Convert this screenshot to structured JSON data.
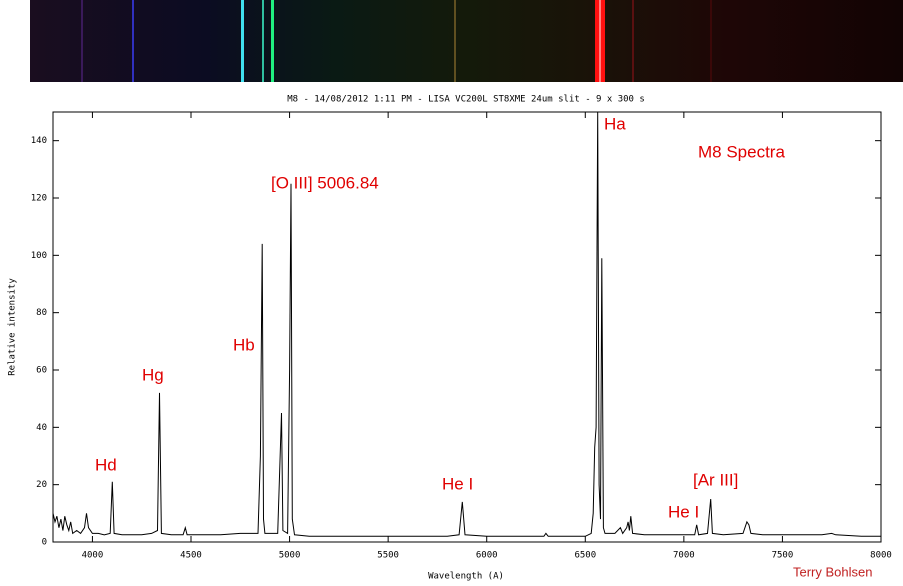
{
  "chart_data": {
    "type": "line",
    "title": "M8 - 14/08/2012 1:11 PM - LISA VC200L ST8XME 24um slit - 9 x 300 s",
    "x_label": "Wavelength (A)",
    "y_label": "Relative intensity",
    "annotations": [
      "Hd",
      "Hg",
      "Hb",
      "[O III] 5006.84",
      "Ha",
      "M8 Spectra",
      "He I",
      "He I",
      "[Ar III]",
      "Terry Bohlsen"
    ],
    "color": "#000000",
    "x": [
      3800,
      3810,
      3820,
      3830,
      3840,
      3850,
      3860,
      3870,
      3880,
      3890,
      3900,
      3920,
      3940,
      3960,
      3970,
      3980,
      4000,
      4030,
      4060,
      4090,
      4101,
      4110,
      4150,
      4200,
      4250,
      4300,
      4330,
      4340,
      4350,
      4400,
      4460,
      4471,
      4480,
      4550,
      4650,
      4750,
      4840,
      4852,
      4861,
      4868,
      4875,
      4940,
      4959,
      4966,
      4990,
      5000,
      5007,
      5014,
      5025,
      5100,
      5200,
      5300,
      5400,
      5500,
      5600,
      5700,
      5800,
      5860,
      5876,
      5890,
      6000,
      6100,
      6200,
      6290,
      6300,
      6312,
      6400,
      6500,
      6530,
      6540,
      6548,
      6555,
      6563,
      6570,
      6577,
      6584,
      6592,
      6600,
      6650,
      6678,
      6690,
      6710,
      6717,
      6724,
      6731,
      6740,
      6800,
      6900,
      7000,
      7055,
      7065,
      7075,
      7120,
      7136,
      7145,
      7200,
      7300,
      7320,
      7330,
      7340,
      7400,
      7500,
      7600,
      7700,
      7750,
      7770,
      7900,
      8000
    ],
    "values": [
      10,
      7,
      9,
      5,
      8,
      4,
      9,
      6,
      4,
      7,
      3,
      4,
      3,
      5,
      10,
      5,
      3,
      3,
      2.5,
      3,
      21,
      3,
      2.5,
      2.5,
      2.5,
      3,
      4,
      52,
      3,
      2.5,
      2.5,
      5,
      2.5,
      2.5,
      2.5,
      3,
      3,
      30,
      104,
      8,
      3,
      3,
      45,
      4,
      3,
      60,
      125,
      8,
      2.5,
      2,
      2,
      2,
      2,
      2,
      2,
      2,
      2,
      2.5,
      14,
      2.5,
      2,
      2,
      2,
      2,
      3,
      2,
      2,
      2,
      3,
      10,
      33,
      40,
      150,
      20,
      8,
      99,
      5,
      3,
      3,
      5,
      3,
      5,
      7,
      4,
      9,
      3,
      2.5,
      2.5,
      2.5,
      2.5,
      6,
      2.5,
      3,
      15,
      3,
      2.5,
      3,
      7,
      6,
      3,
      2.5,
      2.5,
      2.5,
      2.5,
      3,
      2.5,
      2,
      2
    ],
    "xlim": [
      3800,
      8000
    ],
    "xticks": [
      4000,
      4500,
      5000,
      5500,
      6000,
      6500,
      7000,
      7500,
      8000
    ],
    "ylim": [
      0,
      150
    ],
    "yticks": [
      0,
      20,
      40,
      60,
      80,
      100,
      120,
      140
    ]
  }
}
